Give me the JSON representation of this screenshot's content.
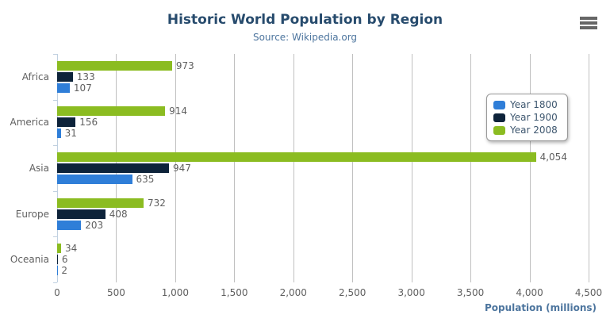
{
  "chart_data": {
    "type": "bar",
    "orientation": "horizontal",
    "title": "Historic World Population by Region",
    "subtitle": "Source: Wikipedia.org",
    "xlabel": "Population (millions)",
    "categories": [
      "Africa",
      "America",
      "Asia",
      "Europe",
      "Oceania"
    ],
    "series": [
      {
        "name": "Year 1800",
        "color": "#2f7ed8",
        "values": [
          107,
          31,
          635,
          203,
          2
        ]
      },
      {
        "name": "Year 1900",
        "color": "#0d233a",
        "values": [
          133,
          156,
          947,
          408,
          6
        ]
      },
      {
        "name": "Year 2008",
        "color": "#8bbc21",
        "values": [
          973,
          914,
          4054,
          732,
          34
        ]
      }
    ],
    "bar_order_top_to_bottom": [
      "Year 2008",
      "Year 1900",
      "Year 1800"
    ],
    "data_labels": true,
    "xlim": [
      0,
      4500
    ],
    "x_ticks": [
      0,
      500,
      1000,
      1500,
      2000,
      2500,
      3000,
      3500,
      4000,
      4500
    ],
    "x_tick_labels": [
      "0",
      "500",
      "1,000",
      "1,500",
      "2,000",
      "2,500",
      "3,000",
      "3,500",
      "4,000",
      "4,500"
    ],
    "grid": true,
    "legend_position": "inside-right",
    "legend_items": [
      "Year 1800",
      "Year 1900",
      "Year 2008"
    ]
  },
  "icons": {
    "context_menu": "hamburger-icon"
  },
  "colors": {
    "background": "#ffffff",
    "series_year_1800": "#2f7ed8",
    "series_year_1900": "#0d233a",
    "series_year_2008": "#8bbc21",
    "title_text": "#274b6d",
    "subtitle_text": "#4d759e",
    "axis_title_text": "#4d759e",
    "axis_label_text": "#606060",
    "data_label_text": "#606060",
    "legend_text": "#3e576f",
    "legend_border": "#999999",
    "grid_line": "#c0c0c0",
    "axis_line": "#c0d0e0",
    "menu_icon": "#666666"
  }
}
